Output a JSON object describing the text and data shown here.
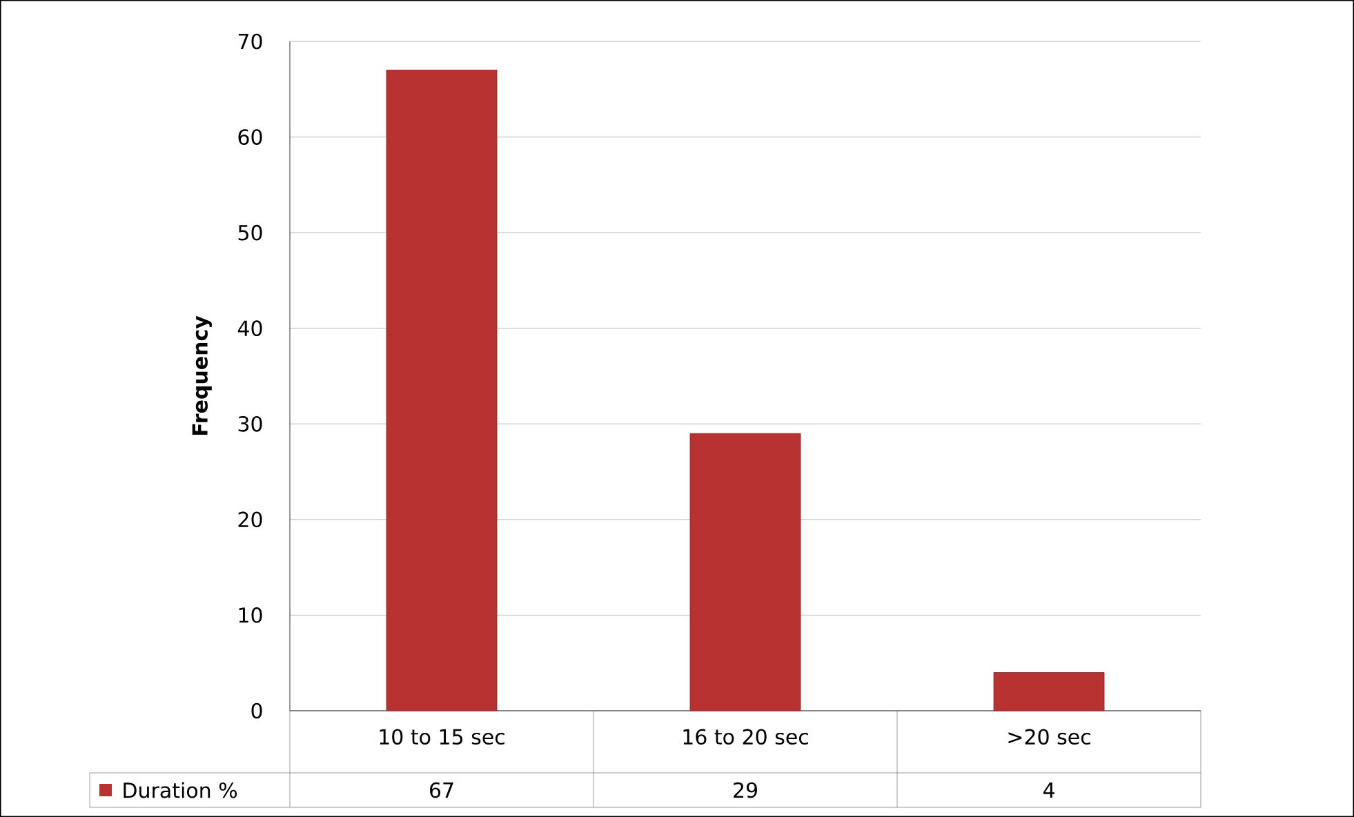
{
  "chart_data": {
    "type": "bar",
    "ylabel": "Frequency",
    "categories": [
      "10 to 15 sec",
      "16 to 20 sec",
      ">20 sec"
    ],
    "series": [
      {
        "name": "Duration %",
        "color": "#b83232",
        "values": [
          67,
          29,
          4
        ]
      }
    ],
    "ylim": [
      0,
      70
    ],
    "yticks": [
      0,
      10,
      20,
      30,
      40,
      50,
      60,
      70
    ],
    "grid": "y",
    "data_labels": true,
    "legend": "bottom"
  }
}
